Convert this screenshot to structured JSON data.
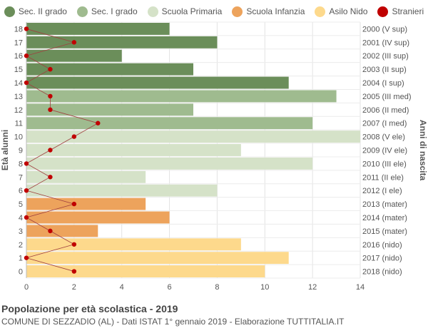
{
  "legend": [
    {
      "label": "Sec. II grado",
      "color": "#6b8e5a"
    },
    {
      "label": "Sec. I grado",
      "color": "#9fbb8f"
    },
    {
      "label": "Scuola Primaria",
      "color": "#d5e2c8"
    },
    {
      "label": "Scuola Infanzia",
      "color": "#eda35c"
    },
    {
      "label": "Asilo Nido",
      "color": "#fdd98c"
    },
    {
      "label": "Stranieri",
      "color": "#c00000"
    }
  ],
  "footer": {
    "title": "Popolazione per età scolastica - 2019",
    "subtitle": "COMUNE DI SEZZADIO (AL) - Dati ISTAT 1° gennaio 2019 - Elaborazione TUTTITALIA.IT"
  },
  "chart_data": {
    "type": "bar",
    "orientation": "horizontal",
    "ylabel": "Età alunni",
    "ylabel_right": "Anni di nascita",
    "xlim": [
      0,
      14
    ],
    "x_ticks": [
      0,
      2,
      4,
      6,
      8,
      10,
      12,
      14
    ],
    "grid": true,
    "legend_position": "top",
    "ages": [
      18,
      17,
      16,
      15,
      14,
      13,
      12,
      11,
      10,
      9,
      8,
      7,
      6,
      5,
      4,
      3,
      2,
      1,
      0
    ],
    "birth_years": [
      "2000 (V sup)",
      "2001 (IV sup)",
      "2002 (III sup)",
      "2003 (II sup)",
      "2004 (I sup)",
      "2005 (III med)",
      "2006 (II med)",
      "2007 (I med)",
      "2008 (V ele)",
      "2009 (IV ele)",
      "2010 (III ele)",
      "2011 (II ele)",
      "2012 (I ele)",
      "2013 (mater)",
      "2014 (mater)",
      "2015 (mater)",
      "2016 (nido)",
      "2017 (nido)",
      "2018 (nido)"
    ],
    "values": [
      6,
      8,
      4,
      7,
      11,
      13,
      7,
      12,
      14,
      9,
      12,
      5,
      8,
      5,
      6,
      3,
      9,
      11,
      10
    ],
    "groups": [
      "Sec. II grado",
      "Sec. II grado",
      "Sec. II grado",
      "Sec. II grado",
      "Sec. II grado",
      "Sec. I grado",
      "Sec. I grado",
      "Sec. I grado",
      "Scuola Primaria",
      "Scuola Primaria",
      "Scuola Primaria",
      "Scuola Primaria",
      "Scuola Primaria",
      "Scuola Infanzia",
      "Scuola Infanzia",
      "Scuola Infanzia",
      "Asilo Nido",
      "Asilo Nido",
      "Asilo Nido"
    ],
    "stranieri": [
      0,
      2,
      0,
      1,
      0,
      1,
      1,
      3,
      2,
      1,
      0,
      1,
      0,
      2,
      0,
      1,
      2,
      0,
      2
    ]
  }
}
